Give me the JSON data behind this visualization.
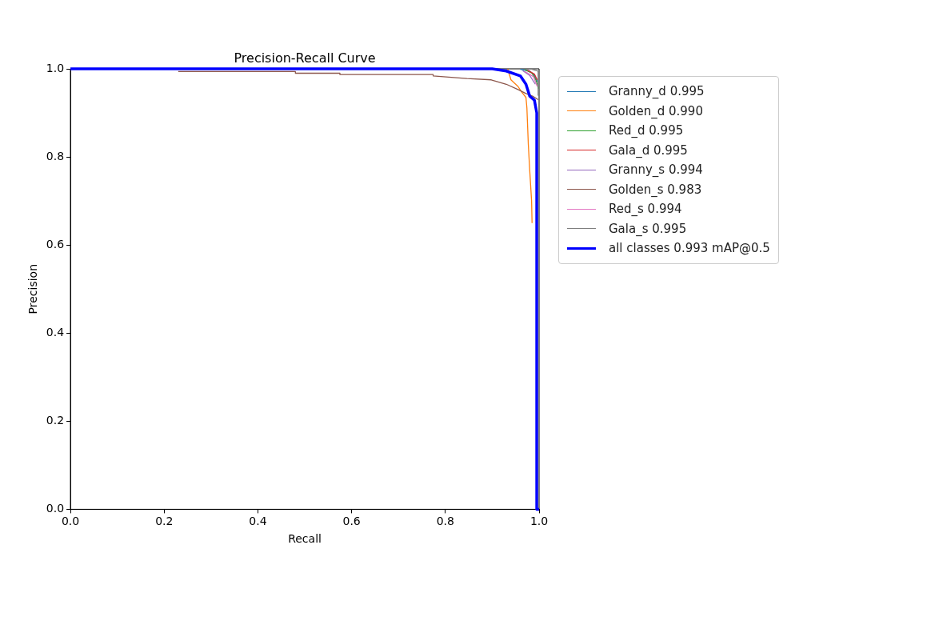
{
  "chart_data": {
    "type": "line",
    "title": "Precision-Recall Curve",
    "xlabel": "Recall",
    "ylabel": "Precision",
    "xlim": [
      0,
      1
    ],
    "ylim": [
      0,
      1
    ],
    "xticks": [
      {
        "value": 0,
        "label": "0.0"
      },
      {
        "value": 0.2,
        "label": "0.2"
      },
      {
        "value": 0.4,
        "label": "0.4"
      },
      {
        "value": 0.6,
        "label": "0.6"
      },
      {
        "value": 0.8,
        "label": "0.8"
      },
      {
        "value": 1,
        "label": "1.0"
      }
    ],
    "yticks": [
      {
        "value": 0,
        "label": "0.0"
      },
      {
        "value": 0.2,
        "label": "0.2"
      },
      {
        "value": 0.4,
        "label": "0.4"
      },
      {
        "value": 0.6,
        "label": "0.6"
      },
      {
        "value": 0.8,
        "label": "0.8"
      },
      {
        "value": 1,
        "label": "1.0"
      }
    ],
    "grid": false,
    "legend": "right",
    "marker": "none",
    "line_style": "solid",
    "series": [
      {
        "name": "Granny_d 0.995",
        "color": "#1f77b4",
        "x": [
          0.96,
          0.98,
          0.99,
          0.997
        ],
        "values": [
          0.999,
          0.995,
          0.985,
          0.97
        ]
      },
      {
        "name": "Golden_d 0.990",
        "color": "#ff7f0e",
        "x": [
          0.933,
          0.94,
          0.955,
          0.963,
          0.972,
          0.974,
          0.977,
          0.98,
          0.984,
          0.985
        ],
        "values": [
          1,
          0.975,
          0.96,
          0.947,
          0.935,
          0.911,
          0.829,
          0.77,
          0.7,
          0.65
        ]
      },
      {
        "name": "Red_d 0.995",
        "color": "#2ca02c",
        "x": [
          0.97,
          0.985,
          0.993,
          0.999
        ],
        "values": [
          0.998,
          0.99,
          0.975,
          0.955
        ]
      },
      {
        "name": "Gala_d 0.995",
        "color": "#d62728",
        "x": [
          0.975,
          0.99,
          0.996
        ],
        "values": [
          0.997,
          0.988,
          0.975
        ]
      },
      {
        "name": "Granny_s 0.994",
        "color": "#9467bd",
        "x": [
          0.965,
          0.98,
          0.992
        ],
        "values": [
          0.996,
          0.985,
          0.965
        ]
      },
      {
        "name": "Golden_s 0.983",
        "color": "#8c564b",
        "x": [
          0.23,
          0.48,
          0.48,
          0.575,
          0.575,
          0.774,
          0.774,
          0.846,
          0.898,
          0.93,
          0.955,
          0.972,
          0.986,
          0.998
        ],
        "values": [
          0.994,
          0.994,
          0.99,
          0.99,
          0.987,
          0.987,
          0.984,
          0.978,
          0.975,
          0.965,
          0.953,
          0.944,
          0.938,
          0.93
        ]
      },
      {
        "name": "Red_s 0.994",
        "color": "#e377c2",
        "x": [
          0.97,
          0.988,
          0.996
        ],
        "values": [
          0.994,
          0.982,
          0.96
        ]
      },
      {
        "name": "Gala_s 0.995",
        "color": "#7f7f7f",
        "x": [
          0.985,
          0.998,
          0.998
        ],
        "values": [
          0.999,
          0.995,
          0.94
        ]
      },
      {
        "name": "all classes 0.993 mAP@0.5",
        "color": "#0000ff",
        "x": [
          0,
          0.9,
          0.93,
          0.96,
          0.972,
          0.98,
          0.99,
          0.995,
          0.995,
          1
        ],
        "values": [
          1,
          1,
          0.995,
          0.984,
          0.965,
          0.938,
          0.929,
          0.9,
          0,
          0
        ]
      }
    ]
  }
}
